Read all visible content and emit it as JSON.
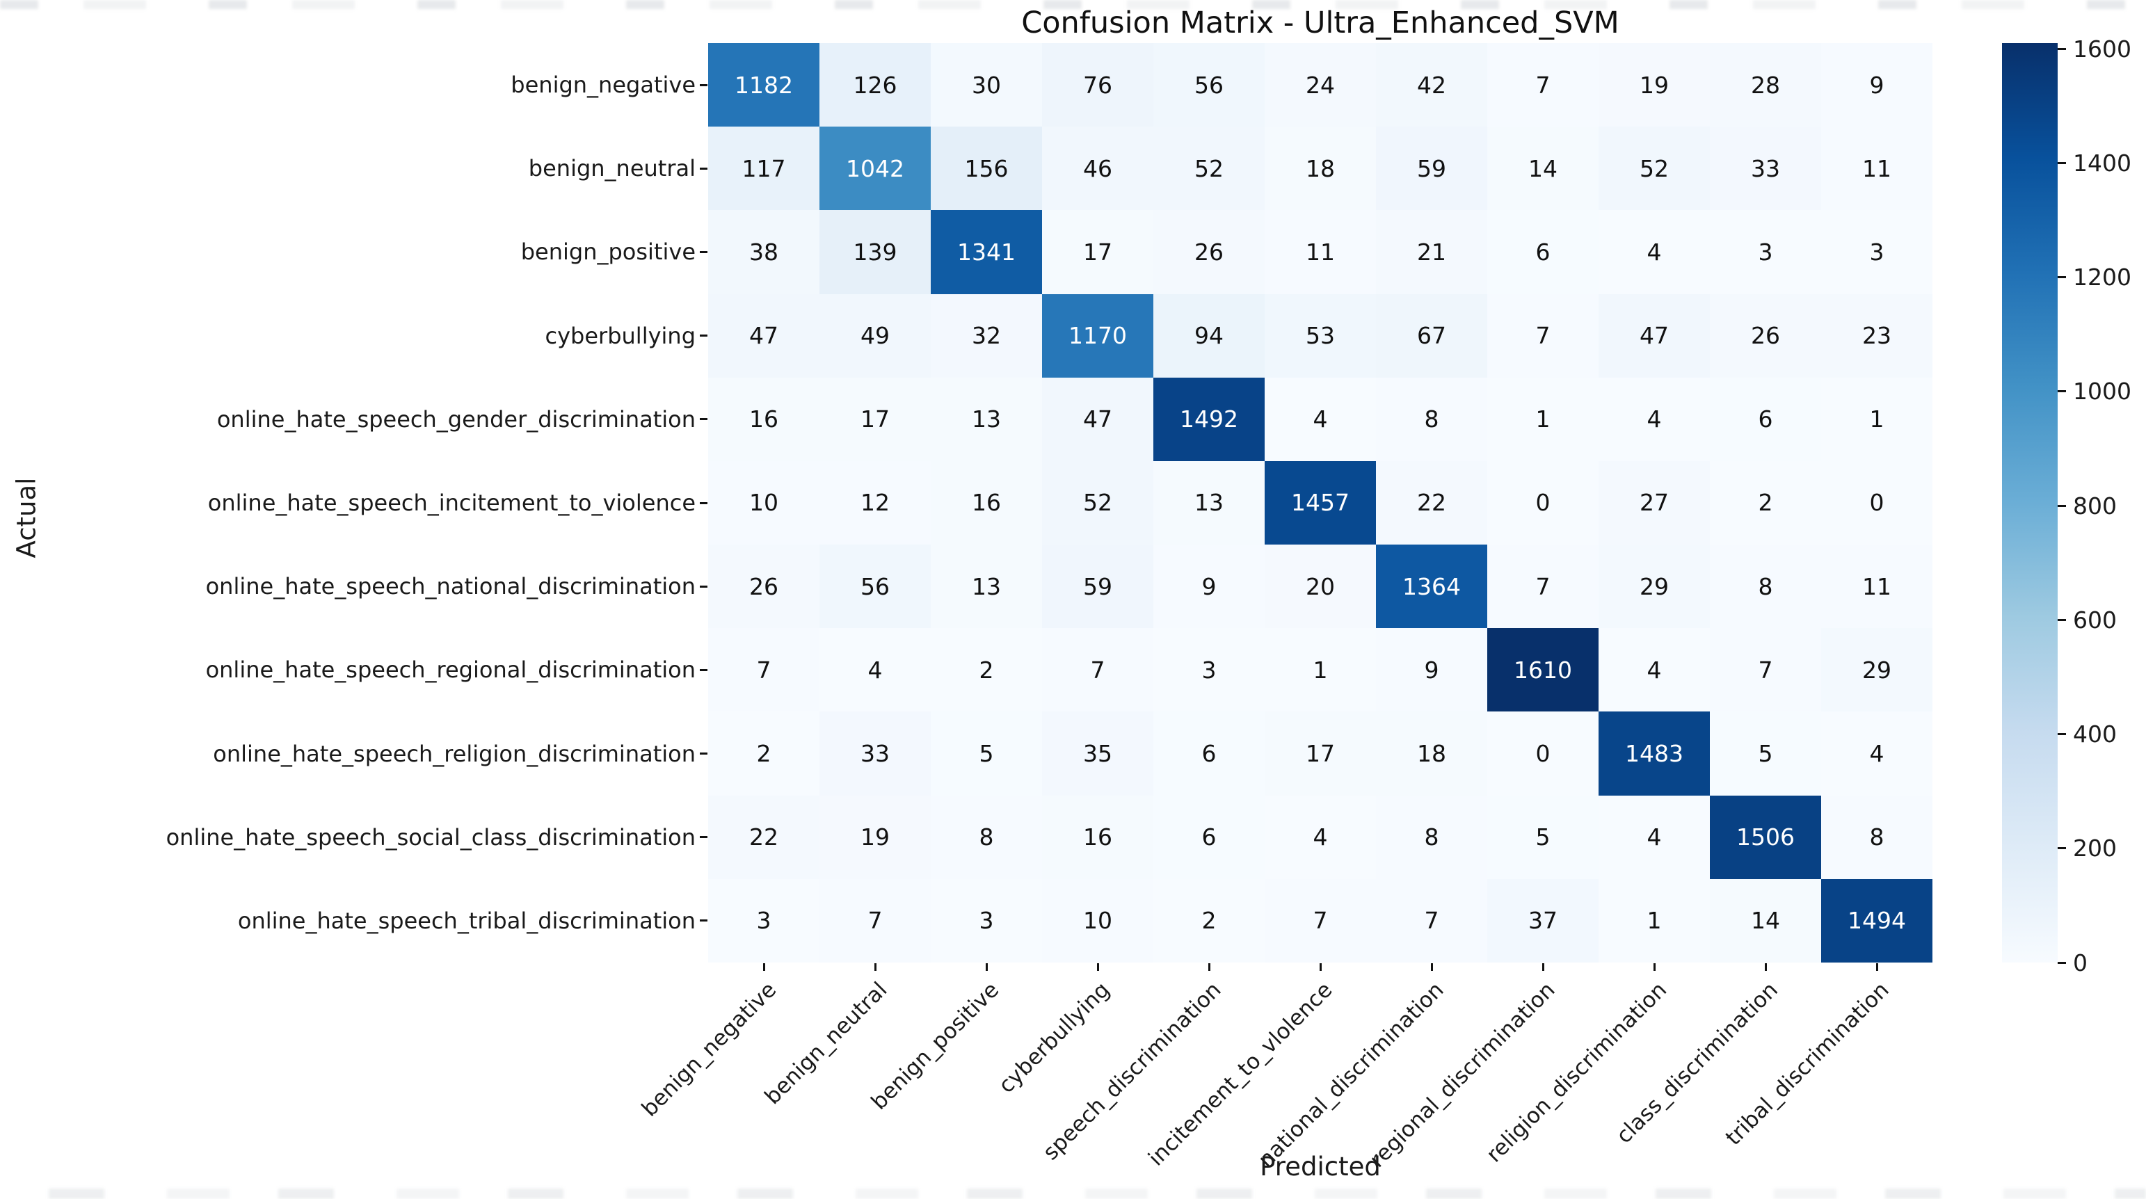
{
  "figure": {
    "title": "Confusion Matrix - Ultra_Enhanced_SVM",
    "x_axis_label": "Predicted",
    "y_axis_label": "Actual"
  },
  "chart_data": {
    "type": "heatmap",
    "title": "Confusion Matrix - Ultra_Enhanced_SVM",
    "xlabel": "Predicted",
    "ylabel": "Actual",
    "x_categories": [
      "benign_negative",
      "benign_neutral",
      "benign_positive",
      "cyberbullying",
      "speech_discrimination",
      "incitement_to_vlolence",
      "national_discrimination",
      "regional_discrimination",
      "religion_discrimination",
      "class_discrimination",
      "tribal_discrimination"
    ],
    "y_categories": [
      "benign_negative",
      "benign_neutral",
      "benign_positive",
      "cyberbullying",
      "online_hate_speech_gender_discrimination",
      "online_hate_speech_incitement_to_violence",
      "online_hate_speech_national_discrimination",
      "online_hate_speech_regional_discrimination",
      "online_hate_speech_religion_discrimination",
      "online_hate_speech_social_class_discrimination",
      "online_hate_speech_tribal_discrimination"
    ],
    "matrix": [
      [
        1182,
        126,
        30,
        76,
        56,
        24,
        42,
        7,
        19,
        28,
        9
      ],
      [
        117,
        1042,
        156,
        46,
        52,
        18,
        59,
        14,
        52,
        33,
        11
      ],
      [
        38,
        139,
        1341,
        17,
        26,
        11,
        21,
        6,
        4,
        3,
        3
      ],
      [
        47,
        49,
        32,
        1170,
        94,
        53,
        67,
        7,
        47,
        26,
        23
      ],
      [
        16,
        17,
        13,
        47,
        1492,
        4,
        8,
        1,
        4,
        6,
        1
      ],
      [
        10,
        12,
        16,
        52,
        13,
        1457,
        22,
        0,
        27,
        2,
        0
      ],
      [
        26,
        56,
        13,
        59,
        9,
        20,
        1364,
        7,
        29,
        8,
        11
      ],
      [
        7,
        4,
        2,
        7,
        3,
        1,
        9,
        1610,
        4,
        7,
        29
      ],
      [
        2,
        33,
        5,
        35,
        6,
        17,
        18,
        0,
        1483,
        5,
        4
      ],
      [
        22,
        19,
        8,
        16,
        6,
        4,
        8,
        5,
        4,
        1506,
        8
      ],
      [
        3,
        7,
        3,
        10,
        2,
        7,
        7,
        37,
        1,
        14,
        1494
      ]
    ],
    "colormap": "Blues",
    "colormap_stops": [
      "#f7fbff",
      "#deebf7",
      "#c6dbef",
      "#9ecae1",
      "#6baed6",
      "#4292c6",
      "#2171b5",
      "#08519c",
      "#08306b"
    ],
    "vmin": 0,
    "vmax": 1610,
    "colorbar_ticks": [
      0,
      200,
      400,
      600,
      800,
      1000,
      1200,
      1400,
      1600
    ],
    "colorbar_position": "right",
    "grid": false,
    "annotated": true,
    "annotation_dark_text": "#111111",
    "annotation_light_text": "#ffffff"
  }
}
